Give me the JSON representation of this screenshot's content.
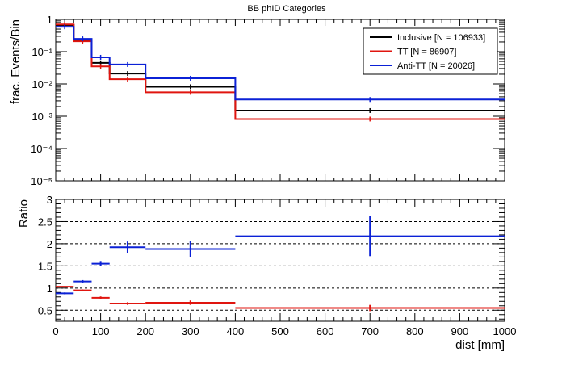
{
  "chart_data": [
    {
      "panel": "top",
      "type": "line",
      "title": "BB phID Categories",
      "ylabel": "frac. Events/Bin",
      "xlabel": "",
      "x_edges": [
        0,
        40,
        80,
        120,
        200,
        400,
        1000
      ],
      "x_centers": [
        20,
        60,
        100,
        160,
        300,
        700
      ],
      "xlim": [
        0,
        1000
      ],
      "ylim": [
        1e-05,
        1
      ],
      "yscale": "log",
      "yticks": [
        1e-05,
        0.0001,
        0.001,
        0.01,
        0.1,
        1
      ],
      "ytick_labels": [
        "10⁻⁵",
        "10⁻⁴",
        "10⁻³",
        "10⁻²",
        "10⁻¹",
        "1"
      ],
      "legend_position": "top-right",
      "series": [
        {
          "name": "Inclusive [N = 106933]",
          "color": "#000000",
          "values": [
            0.67,
            0.23,
            0.045,
            0.021,
            0.0082,
            0.0015
          ]
        },
        {
          "name": "TT [N = 86907]",
          "color": "#e0150f",
          "values": [
            0.7,
            0.21,
            0.035,
            0.014,
            0.0055,
            0.00082
          ]
        },
        {
          "name": "Anti-TT [N = 20026]",
          "color": "#0b21d6",
          "values": [
            0.59,
            0.25,
            0.067,
            0.04,
            0.015,
            0.0033
          ]
        }
      ]
    },
    {
      "panel": "bottom",
      "type": "line",
      "ylabel": "Ratio",
      "xlabel": "dist [mm]",
      "x_edges": [
        0,
        40,
        80,
        120,
        200,
        400,
        1000
      ],
      "x_centers": [
        20,
        60,
        100,
        160,
        300,
        700
      ],
      "xlim": [
        0,
        1000
      ],
      "ylim": [
        0.25,
        3
      ],
      "xticks": [
        0,
        100,
        200,
        300,
        400,
        500,
        600,
        700,
        800,
        900,
        1000
      ],
      "xtick_labels": [
        "0",
        "100",
        "200",
        "300",
        "400",
        "500",
        "600",
        "700",
        "800",
        "900",
        "1000"
      ],
      "yticks": [
        0.5,
        1,
        1.5,
        2,
        2.5,
        3
      ],
      "ytick_labels": [
        "0.5",
        "1",
        "1.5",
        "2",
        "2.5",
        "3"
      ],
      "dashed_gridlines": [
        0.5,
        1,
        1.5,
        2,
        2.5
      ],
      "series": [
        {
          "name": "",
          "color": "#e0150f",
          "values": [
            1.03,
            0.95,
            0.78,
            0.65,
            0.67,
            0.55
          ],
          "errors": [
            0.01,
            0.02,
            0.03,
            0.03,
            0.05,
            0.07
          ]
        },
        {
          "name": "",
          "color": "#0b21d6",
          "values": [
            0.88,
            1.15,
            1.55,
            1.92,
            1.88,
            2.17
          ],
          "errors": [
            0.02,
            0.03,
            0.06,
            0.13,
            0.18,
            0.45
          ]
        }
      ]
    }
  ]
}
